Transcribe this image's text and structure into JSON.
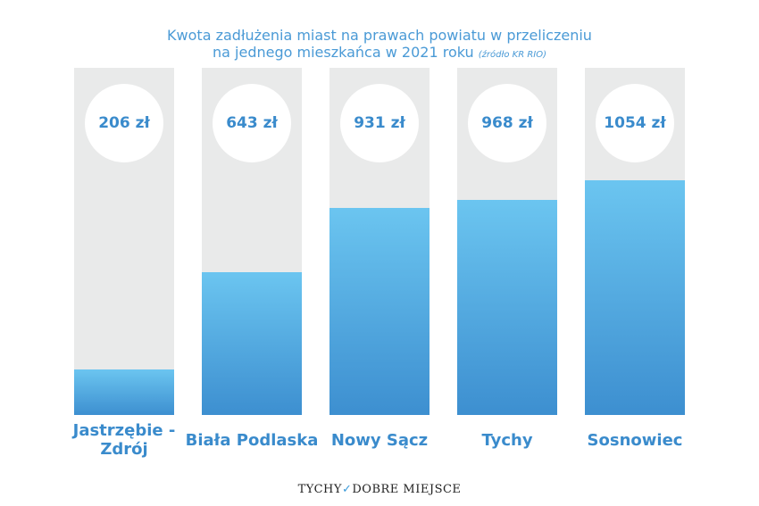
{
  "chart_data": {
    "type": "bar",
    "title_line1": "Kwota zadłużenia miast na prawach powiatu w przeliczeniu",
    "title_line2": "na jednego mieszkańca w 2021 roku",
    "source": "(źródło KR RIO)",
    "categories": [
      "Jastrzębie -Zdrój",
      "Biała Podlaska",
      "Nowy Sącz",
      "Tychy",
      "Sosnowiec"
    ],
    "values": [
      206,
      643,
      931,
      968,
      1054
    ],
    "value_labels": [
      "206 zł",
      "643 zł",
      "931 zł",
      "968 zł",
      "1054 zł"
    ],
    "unit": "zł",
    "colors": {
      "bar_top": "#6bc5f0",
      "bar_bottom": "#3d8fd0",
      "track": "#e9eaea",
      "text": "#3a8bcc"
    }
  },
  "footer": {
    "logo_left": "TYCHY",
    "logo_mark": "check-icon",
    "logo_right": "DOBRE MIEJSCE"
  }
}
